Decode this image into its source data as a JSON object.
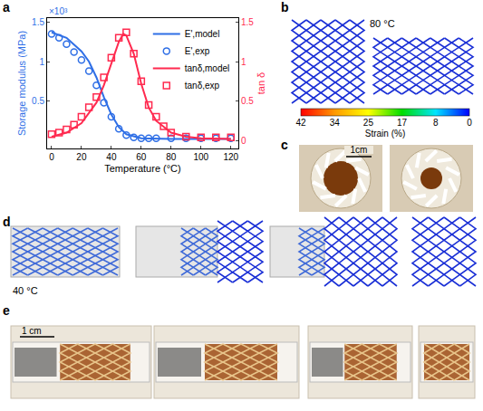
{
  "chart_data": {
    "type": "line",
    "label": "a",
    "x_label": "Temperature (°C)",
    "y_label": "Storage modulus (MPa)",
    "y2_label": "tan δ",
    "annotations": [
      "×10³"
    ],
    "xlim": [
      -3,
      125
    ],
    "xticks": [
      0,
      20,
      40,
      60,
      80,
      100,
      120
    ],
    "ylim": [
      -0.1,
      1.55
    ],
    "yticks": [
      0.5,
      1,
      1.5
    ],
    "y2lim": [
      -0.1,
      1.55
    ],
    "y2ticks": [
      0,
      0.5,
      1,
      1.5
    ],
    "legend": "upper right",
    "grid": false,
    "series": [
      {
        "name": "E',model",
        "type": "line",
        "color": "#2f6fe6",
        "line_style": "solid",
        "x": [
          0,
          10,
          20,
          25,
          30,
          35,
          40,
          45,
          50,
          60,
          80,
          120
        ],
        "values": [
          1.37,
          1.3,
          1.13,
          1.0,
          0.8,
          0.55,
          0.33,
          0.17,
          0.08,
          0.03,
          0.02,
          0.02
        ]
      },
      {
        "name": "E',exp",
        "type": "scatter",
        "color": "#2f6fe6",
        "marker": "circle",
        "x": [
          0,
          5,
          10,
          15,
          20,
          25,
          30,
          35,
          40,
          45,
          50,
          55,
          60,
          65,
          70,
          80,
          90,
          100,
          110,
          120
        ],
        "values": [
          1.35,
          1.3,
          1.22,
          1.12,
          1.02,
          0.88,
          0.7,
          0.48,
          0.3,
          0.15,
          0.07,
          0.04,
          0.03,
          0.03,
          0.03,
          0.03,
          0.03,
          0.03,
          0.03,
          0.03
        ]
      },
      {
        "name": "tanδ,model",
        "type": "line",
        "color": "#ff2a4f",
        "line_style": "solid",
        "axis": "y2",
        "x": [
          0,
          10,
          20,
          30,
          35,
          40,
          45,
          48,
          50,
          55,
          60,
          65,
          70,
          80,
          90,
          100,
          120
        ],
        "values": [
          0.05,
          0.1,
          0.22,
          0.48,
          0.7,
          0.98,
          1.25,
          1.35,
          1.33,
          1.1,
          0.72,
          0.42,
          0.25,
          0.1,
          0.05,
          0.03,
          0.02
        ]
      },
      {
        "name": "tanδ,exp",
        "type": "scatter",
        "color": "#ff2a4f",
        "marker": "square",
        "axis": "y2",
        "x": [
          0,
          5,
          10,
          15,
          20,
          25,
          30,
          35,
          40,
          45,
          50,
          55,
          60,
          65,
          70,
          75,
          80,
          90,
          100,
          110,
          120
        ],
        "values": [
          0.08,
          0.1,
          0.14,
          0.2,
          0.3,
          0.42,
          0.55,
          0.8,
          1.05,
          1.3,
          1.37,
          1.1,
          0.75,
          0.45,
          0.3,
          0.18,
          0.1,
          0.05,
          0.04,
          0.04,
          0.04
        ]
      }
    ]
  },
  "panels": {
    "b": {
      "label": "b",
      "temperature": "80 °C",
      "colorbar": {
        "label": "Strain (%)",
        "ticks": [
          42,
          34,
          25,
          17,
          8,
          0
        ],
        "colors": [
          "#ff0000",
          "#ff9900",
          "#ffff00",
          "#00dd00",
          "#00e5ff",
          "#0000ff"
        ]
      }
    },
    "c": {
      "label": "c",
      "scale": "1cm"
    },
    "d": {
      "label": "d",
      "temperature": "40 °C"
    },
    "e": {
      "label": "e",
      "scale": "1 cm"
    }
  }
}
